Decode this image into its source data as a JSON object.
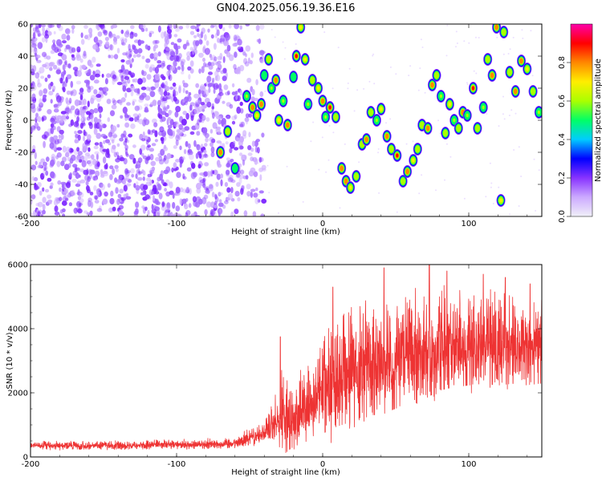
{
  "figure": {
    "title": "GN04.2025.056.19.36.E16"
  },
  "chart_data": [
    {
      "type": "heatmap",
      "xlabel": "Height of straight line (km)",
      "ylabel": "Frequency (Hz)",
      "xlim": [
        -200,
        150
      ],
      "ylim": [
        -60,
        60
      ],
      "xticks": [
        -200,
        -100,
        0,
        100
      ],
      "yticks": [
        -60,
        -40,
        -20,
        0,
        20,
        40,
        60
      ],
      "grid": false,
      "colorbar": {
        "label": "Normalized spectral amplitude",
        "range": [
          0,
          1
        ],
        "ticks": [
          0.0,
          0.2,
          0.4,
          0.6,
          0.8
        ],
        "colors": [
          "#f0f0f8",
          "#ccaaff",
          "#8833ff",
          "#0000ff",
          "#00ccff",
          "#00ff66",
          "#aaff00",
          "#ffee00",
          "#ff8800",
          "#ff0000",
          "#ff00aa"
        ]
      },
      "background_noise": {
        "x_range": [
          -200,
          -50
        ],
        "amplitude_range": [
          0.02,
          0.2
        ]
      },
      "features": [
        {
          "x": -70,
          "y": -20,
          "amp": 0.8
        },
        {
          "x": -65,
          "y": -7,
          "amp": 0.6
        },
        {
          "x": -60,
          "y": -30,
          "amp": 0.5
        },
        {
          "x": -52,
          "y": 15,
          "amp": 0.55
        },
        {
          "x": -48,
          "y": 8,
          "amp": 0.75
        },
        {
          "x": -45,
          "y": 3,
          "amp": 0.7
        },
        {
          "x": -42,
          "y": 10,
          "amp": 0.8
        },
        {
          "x": -40,
          "y": 28,
          "amp": 0.5
        },
        {
          "x": -37,
          "y": 38,
          "amp": 0.6
        },
        {
          "x": -35,
          "y": 20,
          "amp": 0.55
        },
        {
          "x": -32,
          "y": 25,
          "amp": 0.8
        },
        {
          "x": -30,
          "y": 0,
          "amp": 0.7
        },
        {
          "x": -27,
          "y": 12,
          "amp": 0.55
        },
        {
          "x": -24,
          "y": -3,
          "amp": 0.8
        },
        {
          "x": -20,
          "y": 27,
          "amp": 0.5
        },
        {
          "x": -18,
          "y": 40,
          "amp": 0.85
        },
        {
          "x": -15,
          "y": 58,
          "amp": 0.65
        },
        {
          "x": -12,
          "y": 38,
          "amp": 0.7
        },
        {
          "x": -10,
          "y": 10,
          "amp": 0.55
        },
        {
          "x": -7,
          "y": 25,
          "amp": 0.6
        },
        {
          "x": -3,
          "y": 20,
          "amp": 0.7
        },
        {
          "x": 0,
          "y": 12,
          "amp": 0.8
        },
        {
          "x": 2,
          "y": 2,
          "amp": 0.55
        },
        {
          "x": 5,
          "y": 8,
          "amp": 0.9
        },
        {
          "x": 9,
          "y": 2,
          "amp": 0.6
        },
        {
          "x": 13,
          "y": -30,
          "amp": 0.8
        },
        {
          "x": 16,
          "y": -38,
          "amp": 0.75
        },
        {
          "x": 19,
          "y": -42,
          "amp": 0.65
        },
        {
          "x": 23,
          "y": -35,
          "amp": 0.6
        },
        {
          "x": 27,
          "y": -15,
          "amp": 0.6
        },
        {
          "x": 30,
          "y": -12,
          "amp": 0.8
        },
        {
          "x": 33,
          "y": 5,
          "amp": 0.6
        },
        {
          "x": 37,
          "y": 0,
          "amp": 0.55
        },
        {
          "x": 40,
          "y": 7,
          "amp": 0.7
        },
        {
          "x": 44,
          "y": -10,
          "amp": 0.75
        },
        {
          "x": 47,
          "y": -18,
          "amp": 0.6
        },
        {
          "x": 51,
          "y": -22,
          "amp": 0.85
        },
        {
          "x": 55,
          "y": -38,
          "amp": 0.6
        },
        {
          "x": 58,
          "y": -32,
          "amp": 0.8
        },
        {
          "x": 62,
          "y": -25,
          "amp": 0.65
        },
        {
          "x": 65,
          "y": -18,
          "amp": 0.6
        },
        {
          "x": 68,
          "y": -3,
          "amp": 0.6
        },
        {
          "x": 72,
          "y": -5,
          "amp": 0.8
        },
        {
          "x": 75,
          "y": 22,
          "amp": 0.75
        },
        {
          "x": 78,
          "y": 28,
          "amp": 0.6
        },
        {
          "x": 81,
          "y": 15,
          "amp": 0.55
        },
        {
          "x": 84,
          "y": -8,
          "amp": 0.6
        },
        {
          "x": 87,
          "y": 10,
          "amp": 0.7
        },
        {
          "x": 90,
          "y": 0,
          "amp": 0.55
        },
        {
          "x": 93,
          "y": -5,
          "amp": 0.6
        },
        {
          "x": 96,
          "y": 5,
          "amp": 0.75
        },
        {
          "x": 99,
          "y": 3,
          "amp": 0.55
        },
        {
          "x": 103,
          "y": 20,
          "amp": 0.85
        },
        {
          "x": 106,
          "y": -5,
          "amp": 0.6
        },
        {
          "x": 110,
          "y": 8,
          "amp": 0.55
        },
        {
          "x": 113,
          "y": 38,
          "amp": 0.6
        },
        {
          "x": 116,
          "y": 28,
          "amp": 0.75
        },
        {
          "x": 119,
          "y": 58,
          "amp": 0.8
        },
        {
          "x": 122,
          "y": -50,
          "amp": 0.7
        },
        {
          "x": 124,
          "y": 55,
          "amp": 0.6
        },
        {
          "x": 128,
          "y": 30,
          "amp": 0.6
        },
        {
          "x": 132,
          "y": 18,
          "amp": 0.75
        },
        {
          "x": 136,
          "y": 37,
          "amp": 0.8
        },
        {
          "x": 140,
          "y": 32,
          "amp": 0.65
        },
        {
          "x": 144,
          "y": 18,
          "amp": 0.6
        },
        {
          "x": 148,
          "y": 5,
          "amp": 0.55
        }
      ]
    },
    {
      "type": "line",
      "xlabel": "Height of straight line (km)",
      "ylabel": "SNR (10 * v/v)",
      "xlim": [
        -200,
        150
      ],
      "ylim": [
        0,
        6000
      ],
      "xticks": [
        -200,
        -100,
        0,
        100
      ],
      "yticks": [
        0,
        2000,
        4000,
        6000
      ],
      "grid": false,
      "color": "#ee3333",
      "envelope": {
        "x": [
          -200,
          -150,
          -100,
          -60,
          -50,
          -40,
          -35,
          -30,
          -28,
          -25,
          -20,
          -10,
          -5,
          0,
          5,
          10,
          20,
          30,
          40,
          50,
          60,
          70,
          80,
          90,
          100,
          110,
          120,
          130,
          140,
          150
        ],
        "mean": [
          350,
          350,
          370,
          420,
          600,
          750,
          950,
          1100,
          1200,
          1100,
          1200,
          1500,
          1700,
          2100,
          2400,
          2550,
          2650,
          2800,
          2850,
          3000,
          3200,
          3300,
          3400,
          3500,
          3500,
          3500,
          3500,
          3500,
          3400,
          3400
        ],
        "spread": [
          200,
          200,
          220,
          250,
          400,
          500,
          900,
          1600,
          2500,
          1700,
          1600,
          1800,
          1900,
          2500,
          2800,
          2900,
          2800,
          2700,
          2800,
          2700,
          2600,
          2700,
          2400,
          2400,
          2300,
          2200,
          2300,
          2200,
          2100,
          2000
        ]
      },
      "notable_peaks": [
        {
          "x": -29,
          "y": 3750
        },
        {
          "x": 7,
          "y": 5300
        },
        {
          "x": 42,
          "y": 5900
        },
        {
          "x": 73,
          "y": 6000
        },
        {
          "x": 85,
          "y": 5800
        },
        {
          "x": 110,
          "y": 5700
        },
        {
          "x": 125,
          "y": 5600
        },
        {
          "x": 142,
          "y": 5400
        }
      ]
    }
  ]
}
